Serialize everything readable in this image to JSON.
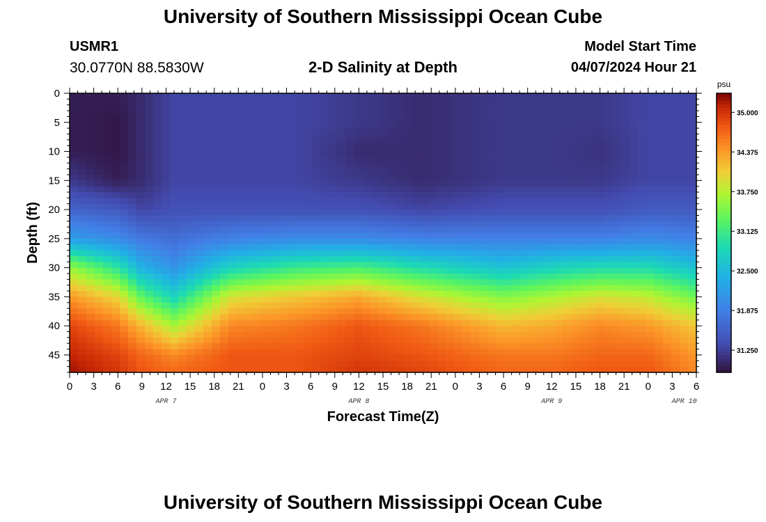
{
  "header": {
    "title": "University of Southern Mississippi Ocean Cube",
    "station": "USMR1",
    "coords": "30.0770N  88.5830W",
    "subtitle": "2-D Salinity at Depth",
    "model_start_label": "Model Start Time",
    "model_start_value": "04/07/2024 Hour 21"
  },
  "footer": {
    "title": "University of Southern Mississippi Ocean Cube"
  },
  "chart_data": {
    "type": "heatmap",
    "title": "2-D Salinity at Depth",
    "xlabel": "Forecast Time(Z)",
    "ylabel": "Depth (ft)",
    "x_hours_range": [
      0,
      78
    ],
    "x_ticks": [
      "0",
      "3",
      "6",
      "9",
      "12",
      "15",
      "18",
      "21",
      "0",
      "3",
      "6",
      "9",
      "12",
      "15",
      "18",
      "21",
      "0",
      "3",
      "6",
      "9",
      "12",
      "15",
      "18",
      "21",
      "0",
      "3",
      "6"
    ],
    "day_labels": [
      "APR 7",
      "APR 8",
      "APR 9",
      "APR 10"
    ],
    "day_label_hours": [
      12,
      36,
      60,
      76.5
    ],
    "y_ticks": [
      0,
      5,
      10,
      15,
      20,
      25,
      30,
      35,
      40,
      45
    ],
    "ylim": [
      0,
      48
    ],
    "y_inverted": true,
    "colorbar": {
      "unit": "psu",
      "range": [
        30.9,
        35.3
      ],
      "ticks": [
        "35.000",
        "34.375",
        "33.750",
        "33.125",
        "32.500",
        "31.875",
        "31.250"
      ],
      "tick_values": [
        35.0,
        34.375,
        33.75,
        33.125,
        32.5,
        31.875,
        31.25
      ]
    },
    "profile_hours": [
      0,
      6,
      9,
      13,
      20,
      28,
      36,
      44,
      54,
      60,
      66,
      72,
      78
    ],
    "profiles": [
      {
        "hour": 0,
        "depth_ft": [
          0,
          5,
          10,
          15,
          20,
          25,
          30,
          35,
          40,
          45,
          48
        ],
        "psu": [
          31.0,
          31.0,
          31.0,
          31.2,
          31.6,
          32.2,
          33.6,
          34.4,
          34.9,
          35.1,
          35.2
        ]
      },
      {
        "hour": 6,
        "depth_ft": [
          0,
          5,
          10,
          15,
          20,
          25,
          30,
          35,
          40,
          45,
          48
        ],
        "psu": [
          31.0,
          30.95,
          30.95,
          31.0,
          31.5,
          32.0,
          33.0,
          34.0,
          34.6,
          34.9,
          35.0
        ]
      },
      {
        "hour": 9,
        "depth_ft": [
          0,
          5,
          10,
          15,
          20,
          25,
          30,
          35,
          40,
          45,
          48
        ],
        "psu": [
          31.1,
          31.1,
          31.1,
          31.1,
          31.3,
          31.8,
          32.4,
          33.3,
          34.2,
          34.7,
          34.8
        ]
      },
      {
        "hour": 13,
        "depth_ft": [
          0,
          5,
          10,
          15,
          20,
          25,
          30,
          35,
          40,
          45,
          48
        ],
        "psu": [
          31.3,
          31.3,
          31.3,
          31.3,
          31.4,
          31.7,
          32.1,
          32.8,
          33.7,
          34.5,
          34.7
        ]
      },
      {
        "hour": 20,
        "depth_ft": [
          0,
          5,
          10,
          15,
          20,
          25,
          30,
          35,
          40,
          45,
          48
        ],
        "psu": [
          31.3,
          31.3,
          31.3,
          31.3,
          31.4,
          31.9,
          32.8,
          33.9,
          34.5,
          34.8,
          34.8
        ]
      },
      {
        "hour": 28,
        "depth_ft": [
          0,
          5,
          10,
          15,
          20,
          25,
          30,
          35,
          40,
          45,
          48
        ],
        "psu": [
          31.3,
          31.3,
          31.3,
          31.3,
          31.4,
          32.0,
          33.1,
          34.1,
          34.6,
          34.8,
          34.8
        ]
      },
      {
        "hour": 36,
        "depth_ft": [
          0,
          5,
          10,
          15,
          20,
          25,
          30,
          35,
          40,
          45,
          48
        ],
        "psu": [
          31.2,
          31.2,
          31.1,
          31.2,
          31.4,
          32.0,
          33.2,
          34.3,
          34.8,
          34.9,
          35.0
        ]
      },
      {
        "hour": 44,
        "depth_ft": [
          0,
          5,
          10,
          15,
          20,
          25,
          30,
          35,
          40,
          45,
          48
        ],
        "psu": [
          31.1,
          31.1,
          31.1,
          31.1,
          31.3,
          31.9,
          32.9,
          33.9,
          34.6,
          34.8,
          34.9
        ]
      },
      {
        "hour": 54,
        "depth_ft": [
          0,
          5,
          10,
          15,
          20,
          25,
          30,
          35,
          40,
          45,
          48
        ],
        "psu": [
          31.2,
          31.2,
          31.2,
          31.2,
          31.4,
          31.9,
          32.6,
          33.5,
          34.2,
          34.6,
          34.7
        ]
      },
      {
        "hour": 60,
        "depth_ft": [
          0,
          5,
          10,
          15,
          20,
          25,
          30,
          35,
          40,
          45,
          48
        ],
        "psu": [
          31.2,
          31.2,
          31.2,
          31.2,
          31.4,
          31.9,
          32.8,
          33.7,
          34.3,
          34.6,
          34.7
        ]
      },
      {
        "hour": 66,
        "depth_ft": [
          0,
          5,
          10,
          15,
          20,
          25,
          30,
          35,
          40,
          45,
          48
        ],
        "psu": [
          31.2,
          31.2,
          31.15,
          31.2,
          31.4,
          31.9,
          32.9,
          33.9,
          34.5,
          34.7,
          34.8
        ]
      },
      {
        "hour": 72,
        "depth_ft": [
          0,
          5,
          10,
          15,
          20,
          25,
          30,
          35,
          40,
          45,
          48
        ],
        "psu": [
          31.3,
          31.3,
          31.3,
          31.3,
          31.5,
          32.0,
          32.9,
          33.8,
          34.4,
          34.7,
          34.8
        ]
      },
      {
        "hour": 78,
        "depth_ft": [
          0,
          5,
          10,
          15,
          20,
          25,
          30,
          35,
          40,
          45,
          48
        ],
        "psu": [
          31.3,
          31.3,
          31.3,
          31.3,
          31.5,
          31.9,
          32.6,
          33.4,
          34.1,
          34.4,
          34.5
        ]
      }
    ]
  }
}
